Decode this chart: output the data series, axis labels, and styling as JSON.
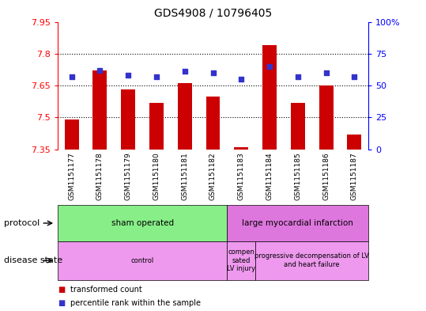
{
  "title": "GDS4908 / 10796405",
  "samples": [
    "GSM1151177",
    "GSM1151178",
    "GSM1151179",
    "GSM1151180",
    "GSM1151181",
    "GSM1151182",
    "GSM1151183",
    "GSM1151184",
    "GSM1151185",
    "GSM1151186",
    "GSM1151187"
  ],
  "transformed_count": [
    7.49,
    7.72,
    7.63,
    7.57,
    7.66,
    7.6,
    7.36,
    7.84,
    7.57,
    7.65,
    7.42
  ],
  "percentile_rank": [
    57,
    62,
    58,
    57,
    61,
    60,
    55,
    65,
    57,
    60,
    57
  ],
  "ylim_left": [
    7.35,
    7.95
  ],
  "ylim_right": [
    0,
    100
  ],
  "yticks_left": [
    7.35,
    7.5,
    7.65,
    7.8,
    7.95
  ],
  "yticks_right": [
    0,
    25,
    50,
    75,
    100
  ],
  "ytick_labels_right": [
    "0",
    "25",
    "50",
    "75",
    "100%"
  ],
  "bar_color": "#cc0000",
  "dot_color": "#3333cc",
  "bar_bottom": 7.35,
  "dot_size": 25,
  "protocol_groups": [
    {
      "label": "sham operated",
      "start": 0,
      "end": 6,
      "color": "#88ee88"
    },
    {
      "label": "large myocardial infarction",
      "start": 6,
      "end": 11,
      "color": "#dd77dd"
    }
  ],
  "disease_groups": [
    {
      "label": "control",
      "start": 0,
      "end": 6,
      "color": "#ee99ee"
    },
    {
      "label": "compen\nsated\nLV injury",
      "start": 6,
      "end": 7,
      "color": "#ee99ee"
    },
    {
      "label": "progressive decompensation of LV\nand heart failure",
      "start": 7,
      "end": 11,
      "color": "#ee99ee"
    }
  ],
  "protocol_row_label": "protocol",
  "disease_row_label": "disease state",
  "legend_items": [
    {
      "color": "#cc0000",
      "label": "transformed count"
    },
    {
      "color": "#3333cc",
      "label": "percentile rank within the sample"
    }
  ],
  "dotted_yticks": [
    7.5,
    7.65,
    7.8
  ],
  "xtick_bg_color": "#cccccc",
  "plot_bg_color": "#ffffff"
}
